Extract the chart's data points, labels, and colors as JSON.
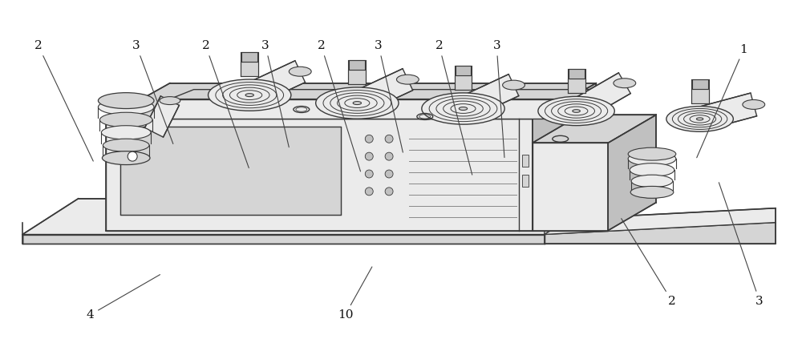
{
  "bg_color": "#ffffff",
  "line_color": "#3a3a3a",
  "figsize": [
    10.0,
    4.33
  ],
  "dpi": 100,
  "annotations": [
    {
      "label": "1",
      "pt": [
        0.87,
        0.54
      ],
      "txt": [
        0.93,
        0.86
      ]
    },
    {
      "label": "2",
      "pt": [
        0.115,
        0.53
      ],
      "txt": [
        0.045,
        0.87
      ]
    },
    {
      "label": "2",
      "pt": [
        0.31,
        0.51
      ],
      "txt": [
        0.255,
        0.87
      ]
    },
    {
      "label": "2",
      "pt": [
        0.45,
        0.5
      ],
      "txt": [
        0.4,
        0.87
      ]
    },
    {
      "label": "2",
      "pt": [
        0.59,
        0.49
      ],
      "txt": [
        0.548,
        0.87
      ]
    },
    {
      "label": "2",
      "pt": [
        0.775,
        0.375
      ],
      "txt": [
        0.84,
        0.13
      ]
    },
    {
      "label": "3",
      "pt": [
        0.215,
        0.58
      ],
      "txt": [
        0.168,
        0.87
      ]
    },
    {
      "label": "3",
      "pt": [
        0.36,
        0.57
      ],
      "txt": [
        0.33,
        0.87
      ]
    },
    {
      "label": "3",
      "pt": [
        0.503,
        0.555
      ],
      "txt": [
        0.472,
        0.87
      ]
    },
    {
      "label": "3",
      "pt": [
        0.63,
        0.54
      ],
      "txt": [
        0.62,
        0.87
      ]
    },
    {
      "label": "3",
      "pt": [
        0.898,
        0.48
      ],
      "txt": [
        0.95,
        0.13
      ]
    },
    {
      "label": "4",
      "pt": [
        0.2,
        0.21
      ],
      "txt": [
        0.11,
        0.09
      ]
    },
    {
      "label": "10",
      "pt": [
        0.465,
        0.235
      ],
      "txt": [
        0.43,
        0.09
      ]
    }
  ]
}
